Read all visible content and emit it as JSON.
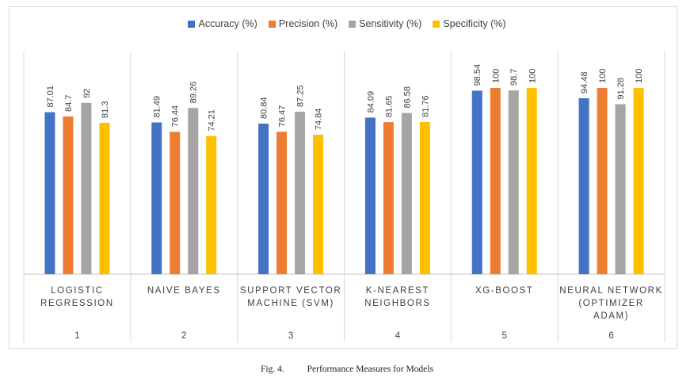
{
  "chart_data": {
    "type": "bar",
    "categories": [
      {
        "name_lines": [
          "LOGISTIC",
          "REGRESSION"
        ],
        "index": "1"
      },
      {
        "name_lines": [
          "NAIVE BAYES"
        ],
        "index": "2"
      },
      {
        "name_lines": [
          "SUPPORT VECTOR",
          "MACHINE (SVM)"
        ],
        "index": "3"
      },
      {
        "name_lines": [
          "K-NEAREST",
          "NEIGHBORS"
        ],
        "index": "4"
      },
      {
        "name_lines": [
          "XG-BOOST"
        ],
        "index": "5"
      },
      {
        "name_lines": [
          "NEURAL NETWORK",
          "(OPTIMIZER",
          "ADAM)"
        ],
        "index": "6"
      }
    ],
    "series": [
      {
        "name": "Accuracy (%)",
        "color": "#4472C4",
        "values": [
          87.01,
          81.49,
          80.84,
          84.09,
          98.54,
          94.48
        ],
        "labels": [
          "87.01",
          "81.49",
          "80.84",
          "84.09",
          "98.54",
          "94.48"
        ]
      },
      {
        "name": "Precision (%)",
        "color": "#ED7D31",
        "values": [
          84.7,
          76.44,
          76.47,
          81.65,
          100,
          100
        ],
        "labels": [
          "84.7",
          "76.44",
          "76.47",
          "81.65",
          "100",
          "100"
        ]
      },
      {
        "name": "Sensitivity (%)",
        "color": "#A5A5A5",
        "values": [
          92,
          89.26,
          87.25,
          86.58,
          98.7,
          91.28
        ],
        "labels": [
          "92",
          "89.26",
          "87.25",
          "86.58",
          "98.7",
          "91.28"
        ]
      },
      {
        "name": "Specificity (%)",
        "color": "#FFC000",
        "values": [
          81.3,
          74.21,
          74.84,
          81.76,
          100,
          100
        ],
        "labels": [
          "81.3",
          "74.21",
          "74.84",
          "81.76",
          "100",
          "100"
        ]
      }
    ],
    "ylim": [
      0,
      100
    ],
    "grid": false,
    "legend_position": "top"
  },
  "caption": {
    "fig": "Fig. 4.",
    "text": "Performance Measures for Models"
  }
}
